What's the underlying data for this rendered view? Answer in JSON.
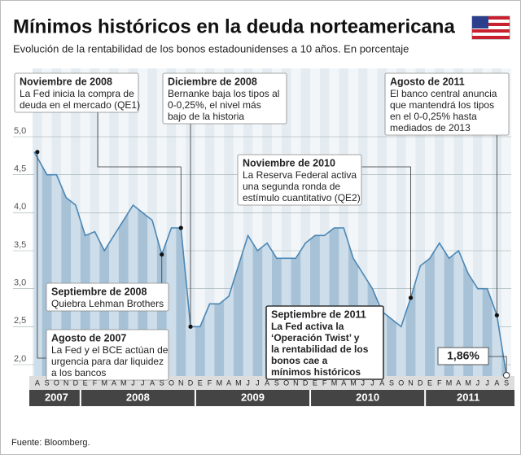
{
  "chart_data": {
    "type": "area",
    "title": "Mínimos históricos en la deuda norteamericana",
    "subtitle": "Evolución de la rentabilidad de los bonos estadounidenses a 10 años. En porcentaje",
    "source": "Fuente: Bloomberg.",
    "categories": [
      "A",
      "S",
      "O",
      "N",
      "D",
      "E",
      "F",
      "M",
      "A",
      "M",
      "J",
      "J",
      "A",
      "S",
      "O",
      "N",
      "D",
      "E",
      "F",
      "M",
      "A",
      "M",
      "J",
      "J",
      "A",
      "S",
      "O",
      "N",
      "D",
      "E",
      "F",
      "M",
      "A",
      "M",
      "J",
      "J",
      "A",
      "S",
      "O",
      "N",
      "D",
      "E",
      "F",
      "M",
      "A",
      "M",
      "J",
      "J",
      "A",
      "S"
    ],
    "year_labels": [
      "2007",
      "2008",
      "2009",
      "2010",
      "2011"
    ],
    "values": [
      4.8,
      4.5,
      4.5,
      4.2,
      4.1,
      3.7,
      3.75,
      3.5,
      3.7,
      3.9,
      4.1,
      4.0,
      3.9,
      3.45,
      3.8,
      3.8,
      2.5,
      2.5,
      2.8,
      2.8,
      2.9,
      3.3,
      3.7,
      3.5,
      3.6,
      3.4,
      3.4,
      3.4,
      3.6,
      3.7,
      3.7,
      3.8,
      3.8,
      3.4,
      3.2,
      3.0,
      2.7,
      2.6,
      2.5,
      2.88,
      3.3,
      3.4,
      3.6,
      3.4,
      3.5,
      3.2,
      3.0,
      3.0,
      2.65,
      1.86
    ],
    "value_labels": [
      null,
      null,
      null,
      null,
      null,
      null,
      null,
      null,
      null,
      null,
      null,
      null,
      null,
      null,
      null,
      null,
      null,
      null,
      null,
      null,
      null,
      null,
      null,
      null,
      null,
      null,
      null,
      null,
      null,
      null,
      null,
      null,
      null,
      null,
      null,
      null,
      null,
      null,
      null,
      null,
      null,
      null,
      null,
      null,
      null,
      null,
      null,
      null,
      null,
      "1,86%"
    ],
    "color": "#4a86b5",
    "ylim": [
      1.85,
      5.9
    ],
    "yticks": [
      {
        "value": 2.0,
        "label": "2,0"
      },
      {
        "value": 2.5,
        "label": "2,5"
      },
      {
        "value": 3.0,
        "label": "3,0"
      },
      {
        "value": 3.5,
        "label": "3,5"
      },
      {
        "value": 4.0,
        "label": "4,0"
      },
      {
        "value": 4.5,
        "label": "4,5"
      },
      {
        "value": 5.0,
        "label": "5,0"
      }
    ],
    "grid": true,
    "annotations": [
      {
        "title": "Noviembre de 2008",
        "lines": [
          "La Fed inicia la compra de",
          "deuda en el mercado (QE1)"
        ],
        "index": 15
      },
      {
        "title": "Diciembre de 2008",
        "lines": [
          "Bernanke baja los tipos al",
          "0-0,25%, el nivel más",
          "bajo de la historia"
        ],
        "index": 16
      },
      {
        "title": "Noviembre de 2010",
        "lines": [
          "La Reserva Federal activa",
          "una segunda ronda de",
          "estímulo cuantitativo (QE2)"
        ],
        "index": 39
      },
      {
        "title": "Agosto de 2011",
        "lines": [
          "El banco central anuncia",
          "que mantendrá los tipos",
          "en el 0-0,25% hasta",
          "mediados de 2013"
        ],
        "index": 48
      },
      {
        "title": "Septiembre de 2008",
        "lines": [
          "Quiebra Lehman Brothers"
        ],
        "index": 13
      },
      {
        "title": "Agosto de 2007",
        "lines": [
          "La Fed y el BCE actúan de",
          "urgencia para dar liquidez",
          "a los bancos"
        ],
        "index": 0
      },
      {
        "title": "Septiembre de 2011",
        "lines": [
          "La Fed activa la",
          "‘Operación Twist’ y",
          "la rentabilidad de los",
          "bonos cae a",
          "mínimos históricos"
        ],
        "emphasis": true
      }
    ]
  }
}
